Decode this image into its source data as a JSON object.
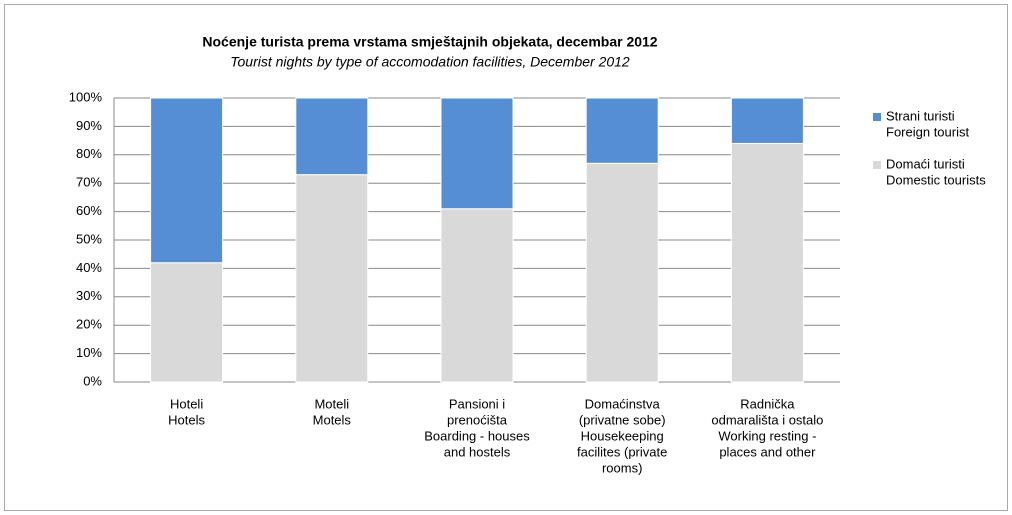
{
  "chart_data": {
    "type": "stacked_bar",
    "title": "Noćenje turista prema vrstama smještajnih objekata, decembar 2012",
    "subtitle": "Tourist nights by type of accomodation facilities, December 2012",
    "categories": [
      [
        "Hoteli",
        "Hotels"
      ],
      [
        "Moteli",
        "Motels"
      ],
      [
        "Pansioni  i",
        "prenoćišta",
        "Boarding - houses",
        "and hostels"
      ],
      [
        "Domaćinstva",
        "(privatne sobe)",
        "Housekeeping",
        "facilites (private",
        "rooms)"
      ],
      [
        "Radnička",
        "odmarališta i ostalo",
        "Working resting -",
        "places and other"
      ]
    ],
    "series": [
      {
        "name": [
          "Domaći turisti",
          "Domestic tourists"
        ],
        "color": "#d9d9d9",
        "values": [
          42,
          73,
          61,
          77,
          84
        ]
      },
      {
        "name": [
          "Strani turisti",
          "Foreign tourist"
        ],
        "color": "#558ed5",
        "values": [
          58,
          27,
          39,
          23,
          16
        ]
      }
    ],
    "ylim": [
      0,
      100
    ],
    "yticks": [
      {
        "value": 0,
        "label": "0%"
      },
      {
        "value": 10,
        "label": "10%"
      },
      {
        "value": 20,
        "label": "20%"
      },
      {
        "value": 30,
        "label": "30%"
      },
      {
        "value": 40,
        "label": "40%"
      },
      {
        "value": 50,
        "label": "50%"
      },
      {
        "value": 60,
        "label": "60%"
      },
      {
        "value": 70,
        "label": "70%"
      },
      {
        "value": 80,
        "label": "80%"
      },
      {
        "value": 90,
        "label": "90%"
      },
      {
        "value": 100,
        "label": "100%"
      }
    ],
    "grid": true
  }
}
